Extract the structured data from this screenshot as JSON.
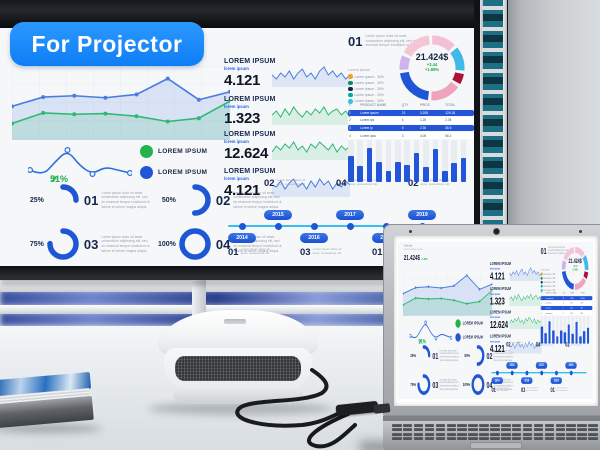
{
  "badge": {
    "label": "For Projector",
    "bg": "#1e8dff"
  },
  "dashboard": {
    "header": {
      "title": "Total data",
      "subtitle": "Lorem ipsum dolor sit amet",
      "value": "21.424$",
      "delta": "+1.88%"
    },
    "area_chart": {
      "series": [
        {
          "name": "LOREM IPSUM",
          "color": "#4a7de0",
          "values": [
            48,
            62,
            64,
            61,
            66,
            90,
            58,
            70
          ]
        },
        {
          "name": "LOREM IPSUM",
          "color": "#2eb872",
          "values": [
            22,
            38,
            36,
            37,
            33,
            25,
            30,
            56
          ]
        }
      ]
    },
    "trend": {
      "value": "51%",
      "arrow": "↗",
      "color": "#1fae4d",
      "points": [
        24,
        30,
        16,
        4,
        20,
        28,
        21,
        24,
        27
      ]
    },
    "legend": [
      {
        "label": "LOREM IPSUM",
        "color": "#22b34b"
      },
      {
        "label": "LOREM IPSUM",
        "color": "#1f56d6"
      }
    ],
    "stats": [
      {
        "title": "LOREM IPSUM",
        "subtitle": "lorem ipsum",
        "value": "4.121",
        "color": "#4a7de0",
        "spark": [
          5,
          3,
          6,
          4,
          7,
          3,
          6,
          8,
          4,
          6,
          3,
          7,
          9,
          5,
          7,
          4,
          6,
          3,
          5
        ]
      },
      {
        "title": "LOREM IPSUM",
        "subtitle": "lorem ipsum",
        "value": "1.323",
        "color": "#2eb872",
        "spark": [
          4,
          6,
          3,
          7,
          4,
          8,
          5,
          3,
          6,
          4,
          7,
          5,
          8,
          4,
          6,
          7,
          4,
          6,
          3
        ]
      },
      {
        "title": "LOREM IPSUM",
        "subtitle": "lorem ipsum",
        "value": "12.624",
        "color": "#2eb872",
        "spark": [
          3,
          6,
          4,
          7,
          5,
          8,
          4,
          6,
          3,
          7,
          5,
          8,
          6,
          4,
          7,
          3,
          6,
          4,
          6
        ]
      },
      {
        "title": "LOREM IPSUM",
        "subtitle": "lorem ipsum",
        "value": "4.121",
        "color": "#4a7de0",
        "spark": [
          5,
          4,
          7,
          3,
          6,
          8,
          4,
          6,
          3,
          7,
          4,
          8,
          5,
          7,
          3,
          6,
          4,
          7,
          5
        ]
      }
    ],
    "kpis": [
      {
        "num": "01",
        "pct": 25,
        "pct_label": "25%",
        "text": "Lorem ipsum dolor sit amet, consectetur adipiscing elit, sed do eiusmod tempor incididunt ut labore et dolore magna aliqua."
      },
      {
        "num": "02",
        "pct": 50,
        "pct_label": "50%",
        "text": "Lorem ipsum dolor sit amet, consectetur adipiscing elit, sed do eiusmod tempor incididunt ut labore et dolore magna aliqua."
      },
      {
        "num": "03",
        "pct": 75,
        "pct_label": "75%",
        "text": "Lorem ipsum dolor sit amet, consectetur adipiscing elit, sed do eiusmod tempor incididunt ut labore et dolore magna aliqua."
      },
      {
        "num": "04",
        "pct": 100,
        "pct_label": "100%",
        "text": "Lorem ipsum dolor sit amet, consectetur adipiscing elit, sed do eiusmod tempor incididunt ut labore et dolore magna aliqua."
      }
    ],
    "kpi_accent": "#1f56d6",
    "timeline": {
      "item_text": "Lorem ipsum dolor sit amet, consectetur elit.",
      "years": [
        {
          "year": "2014",
          "num": "01",
          "side": "below"
        },
        {
          "year": "2015",
          "num": "02",
          "side": "above"
        },
        {
          "year": "2016",
          "num": "03",
          "side": "below"
        },
        {
          "year": "2017",
          "num": "04",
          "side": "above"
        },
        {
          "year": "2018",
          "num": "01",
          "side": "below"
        },
        {
          "year": "2019",
          "num": "02",
          "side": "above"
        }
      ]
    },
    "donut": {
      "block_num": "01",
      "block_text": "Lorem ipsum dolor sit amet, consectetur adipiscing elit, sed do eiusmod tempor incididunt ut labore.",
      "center_value": "21.424$",
      "delta": "+3.44",
      "delta_pct": "+1.88%",
      "segments": [
        {
          "color": "#f3bfd2",
          "value": 14
        },
        {
          "color": "#41b9e6",
          "value": 14
        },
        {
          "color": "#ae1234",
          "value": 7
        },
        {
          "color": "#f0a3bd",
          "value": 17
        },
        {
          "color": "#1f56d6",
          "value": 22
        },
        {
          "color": "#cdb4ea",
          "value": 9
        },
        {
          "color": "#f3c6d6",
          "value": 17
        }
      ],
      "legend_title": "Lorem ipsum",
      "legend": [
        {
          "color": "#f59e2c",
          "label": "Lorem ipsum - 30%"
        },
        {
          "color": "#0f8a5f",
          "label": "Lorem ipsum - 30%"
        },
        {
          "color": "#16264c",
          "label": "Lorem ipsum - 30%"
        },
        {
          "color": "#00a8a8",
          "label": "Lorem ipsum - 30%"
        },
        {
          "color": "#35c4dd",
          "label": "Lorem ipsum - 30%"
        }
      ]
    },
    "table": {
      "headers": [
        "#",
        "PRODUCT NAME",
        "QTY",
        "PRICE",
        "TOTAL"
      ],
      "col_widths": [
        "8%",
        "34%",
        "14%",
        "20%",
        "24%"
      ],
      "rows": [
        {
          "cells": [
            "1",
            "Lorem ipsum",
            "21",
            "3.20$",
            "128.1$"
          ],
          "highlight": true
        },
        {
          "cells": [
            "2",
            "Lorem ips",
            "4",
            "1.25",
            "2.35"
          ],
          "highlight": false
        },
        {
          "cells": [
            "3",
            "Lorem ip",
            "5",
            "2.30",
            "38.5"
          ],
          "highlight": true
        },
        {
          "cells": [
            "4",
            "Lorem ipsu",
            "3",
            "4.05",
            "68.2"
          ],
          "highlight": false
        }
      ]
    },
    "bars": {
      "color": "#2255d8",
      "values": [
        62,
        38,
        80,
        48,
        26,
        48,
        40,
        68,
        35,
        78,
        26,
        46,
        58
      ]
    }
  }
}
